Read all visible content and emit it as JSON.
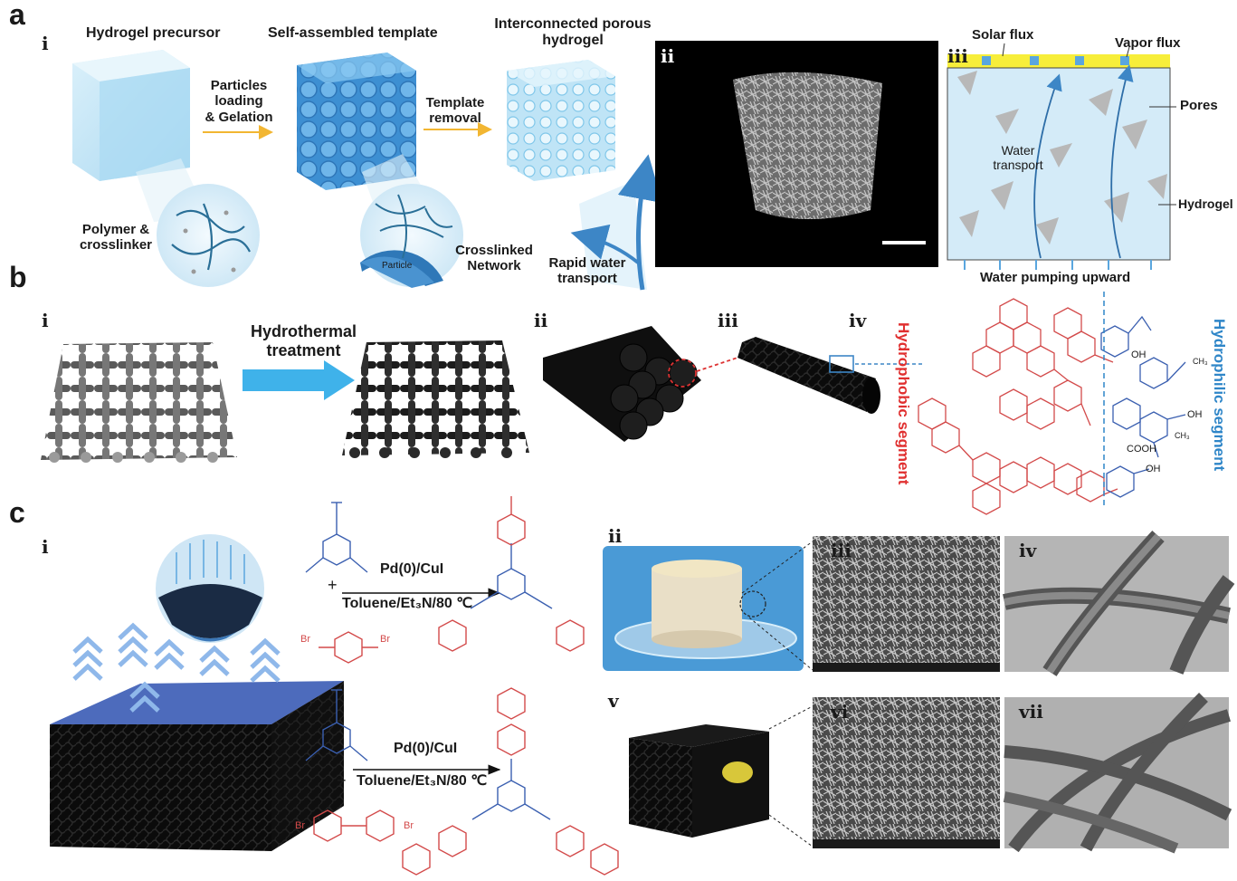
{
  "panel_a": {
    "letter": "a",
    "sub_i": "i",
    "sub_ii": "ii",
    "sub_iii": "iii",
    "hydrogel_precursor": "Hydrogel precursor",
    "self_assembled_template": "Self-assembled template",
    "interconnected_line1": "Interconnected porous",
    "interconnected_line2": "hydrogel",
    "particles_loading_l1": "Particles",
    "particles_loading_l2": "loading",
    "particles_loading_l3": "& Gelation",
    "template_removal_l1": "Template",
    "template_removal_l2": "removal",
    "polymer_l1": "Polymer &",
    "polymer_l2": "crosslinker",
    "particle": "Particle",
    "crosslinked_l1": "Crosslinked",
    "crosslinked_l2": "Network",
    "rapid_l1": "Rapid water",
    "rapid_l2": "transport",
    "solar_flux": "Solar flux",
    "vapor_flux": "Vapor flux",
    "pores": "Pores",
    "water_l1": "Water",
    "water_l2": "transport",
    "hydrogel": "Hydrogel",
    "water_pumping": "Water pumping upward"
  },
  "panel_b": {
    "letter": "b",
    "sub_i": "i",
    "sub_ii": "ii",
    "sub_iii": "iii",
    "sub_iv": "iv",
    "hydro_l1": "Hydrothermal",
    "hydro_l2": "treatment",
    "hydrophobic": "Hydrophobic segment",
    "hydrophilic": "Hydrophilic segment",
    "oh": "OH",
    "cooh": "COOH",
    "ch3": "CH₃"
  },
  "panel_c": {
    "letter": "c",
    "sub_i": "i",
    "sub_ii": "ii",
    "sub_iii": "iii",
    "sub_iv": "iv",
    "sub_v": "v",
    "sub_vi": "vi",
    "sub_vii": "vii",
    "catalyst": "Pd(0)/CuI",
    "conditions": "Toluene/Et₃N/80 ℃",
    "plus": "+",
    "br": "Br"
  },
  "colors": {
    "hydrophobic_red": "#e03030",
    "hydrophilic_blue": "#2f86c8",
    "arrow_yellow": "#f2b632",
    "arrow_blue": "#3aa4e0",
    "solar_yellow": "#f7ee3a",
    "pore_gray": "#b8b8b8",
    "gel_blue": "#d4ebf8"
  },
  "icons": {
    "process_arrow": "right-arrow-icon",
    "vapor_arrow": "up-arrow-icon",
    "chevron_up": "chevron-up-icon"
  }
}
